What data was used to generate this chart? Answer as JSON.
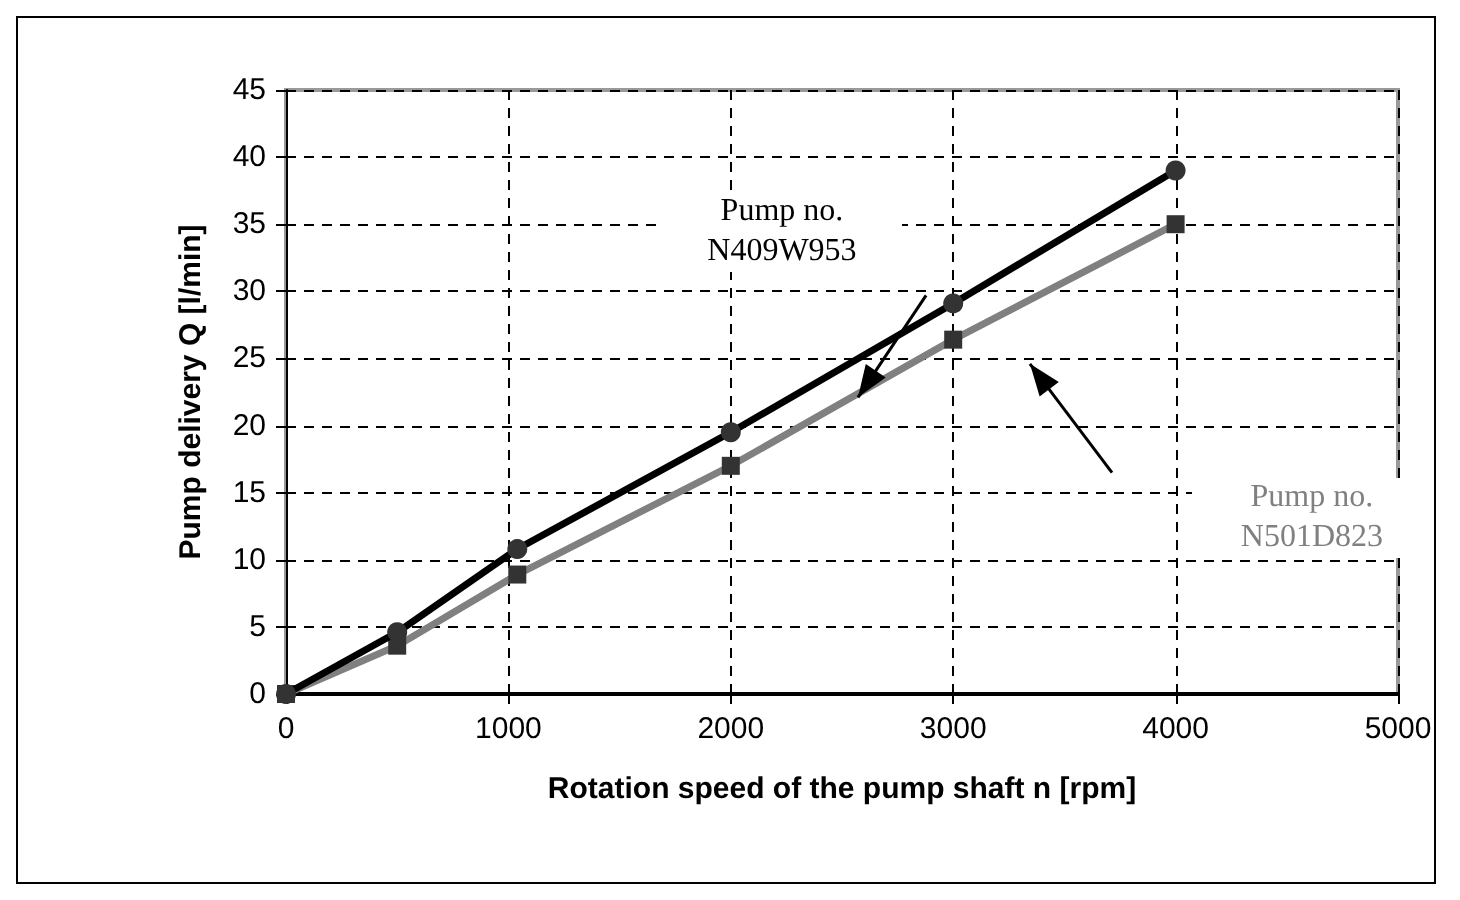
{
  "chart_data": {
    "type": "line",
    "xlabel": "Rotation speed of the pump shaft n [rpm]",
    "ylabel": "Pump delivery Q [l/min]",
    "x": [
      0,
      500,
      1040,
      2000,
      3000,
      4000
    ],
    "series": [
      {
        "name": "Pump no.\nN409W953",
        "color": "#000000",
        "marker": "circle",
        "values": [
          0,
          4.6,
          10.8,
          19.5,
          29.1,
          39
        ]
      },
      {
        "name": "Pump no.\nN501D823",
        "color": "#808080",
        "marker": "square",
        "values": [
          0,
          3.6,
          8.9,
          17,
          26.4,
          35
        ]
      }
    ],
    "xlim": [
      0,
      5000
    ],
    "xticks": [
      0,
      1000,
      2000,
      3000,
      4000,
      5000
    ],
    "ylim": [
      0,
      45
    ],
    "yticks": [
      0,
      5,
      10,
      15,
      20,
      25,
      30,
      35,
      40,
      45
    ],
    "grid": true,
    "legend": false,
    "line_style": "solid"
  }
}
